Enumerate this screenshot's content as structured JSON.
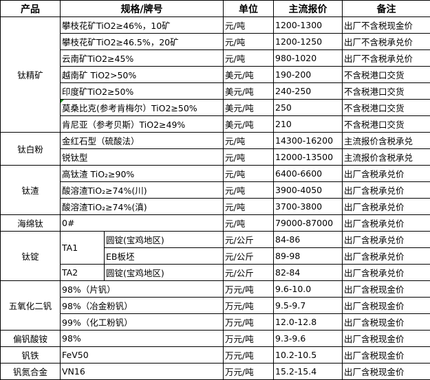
{
  "headers": [
    "产品",
    "规格/牌号",
    "单位",
    "主流报价",
    "备注"
  ],
  "groups": [
    {
      "product": "钛精矿",
      "rows": [
        {
          "spec": "攀枝花矿TiO2≥46%，10矿",
          "unit": "元/吨",
          "price": "1200-1300",
          "note": "出厂不含税现金价"
        },
        {
          "spec": "攀枝花矿TiO2≥46.5%，20矿",
          "unit": "元/吨",
          "price": "1200-1250",
          "note": "出厂不含税承兑价"
        },
        {
          "spec": "云南矿TiO2≥45%",
          "unit": "元/吨",
          "price": "980-1020",
          "note": "出厂不含税承兑价"
        },
        {
          "spec": "越南矿 TiO2>50%",
          "unit": "美元/吨",
          "price": "190-200",
          "note": "不含税港口交货"
        },
        {
          "spec": "印度矿TiO2≥50%",
          "unit": "美元/吨",
          "price": "240-250",
          "note": "不含税港口交货"
        },
        {
          "spec": "莫桑比克(参考肯梅尔）TiO2≥50%",
          "unit": "美元/吨",
          "price": "250",
          "note": "不含税港口交货",
          "comment": true
        },
        {
          "spec": "肯尼亚（参考贝斯）TiO2≥49%",
          "unit": "美元/吨",
          "price": "210",
          "note": "不含税港口交货"
        }
      ]
    },
    {
      "product": "钛白粉",
      "rows": [
        {
          "spec": "金红石型（硫酸法）",
          "unit": "元/吨",
          "price": "14300-16200",
          "note": "主流报价含税承兑"
        },
        {
          "spec": "锐钛型",
          "unit": "元/吨",
          "price": "12000-13500",
          "note": "主流报价含税承兑"
        }
      ]
    },
    {
      "product": "钛渣",
      "rows": [
        {
          "spec": "高钛渣 TiO₂≥90%",
          "unit": "元/吨",
          "price": "6400-6600",
          "note": "出厂含税承兑价"
        },
        {
          "spec": "酸溶渣TiO₂≥74%(川)",
          "unit": "元/吨",
          "price": "3900-4050",
          "note": "出厂含税承兑价"
        },
        {
          "spec": "酸溶渣TiO₂≥74%(滇)",
          "unit": "元/吨",
          "price": "3700-3800",
          "note": "出厂含税承兑价"
        }
      ]
    },
    {
      "product": "海绵钛",
      "rows": [
        {
          "spec": "0#",
          "unit": "元/吨",
          "price": "79000-87000",
          "note": "出厂含税承兑价"
        }
      ]
    },
    {
      "product": "钛锭",
      "subgroups": [
        {
          "grade": "TA1",
          "rows": [
            {
              "spec": "圆锭(宝鸡地区)",
              "unit": "元/公斤",
              "price": "84-86",
              "note": "出厂含税承兑价"
            },
            {
              "spec": "EB板坯",
              "unit": "元/公斤",
              "price": "89-98",
              "note": "出厂含税承兑价"
            }
          ]
        },
        {
          "grade": "TA2",
          "rows": [
            {
              "spec": "圆锭(宝鸡地区)",
              "unit": "元/公斤",
              "price": "82-84",
              "note": "出厂含税承兑价"
            }
          ]
        }
      ]
    },
    {
      "product": "五氧化二钒",
      "rows": [
        {
          "spec": "98%（片钒）",
          "unit": "万元/吨",
          "price": "9.6-10.0",
          "note": "出厂含税现金价"
        },
        {
          "spec": "98%（冶金粉钒）",
          "unit": "万元/吨",
          "price": "9.5-9.7",
          "note": "出厂含税现金价"
        },
        {
          "spec": "99%（化工粉钒）",
          "unit": "万元/吨",
          "price": "12.0-12.8",
          "note": "出厂含税现金价"
        }
      ]
    },
    {
      "product": "偏钒酸铵",
      "rows": [
        {
          "spec": "98%",
          "unit": "万元/吨",
          "price": "9.3-9.6",
          "note": "出厂含税现金价"
        }
      ]
    },
    {
      "product": "钒铁",
      "rows": [
        {
          "spec": "FeV50",
          "unit": "万元/吨",
          "price": "10.2-10.5",
          "note": "出厂含税现金价"
        }
      ]
    },
    {
      "product": "钒氮合金",
      "rows": [
        {
          "spec": "VN16",
          "unit": "万元/吨",
          "price": "15.2-15.4",
          "note": "出厂含税现金价"
        }
      ]
    }
  ]
}
